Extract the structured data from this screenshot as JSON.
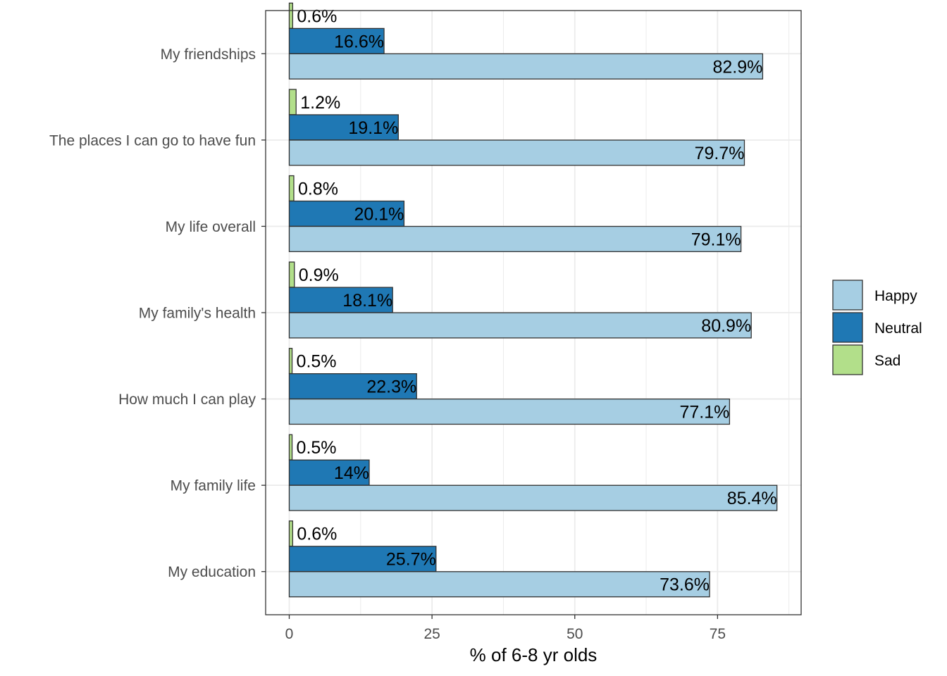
{
  "chart_data": {
    "type": "bar",
    "orientation": "horizontal",
    "categories": [
      "My friendships",
      "The places I can go to have fun",
      "My life overall",
      "My family's health",
      "How much I can play",
      "My family life",
      "My education"
    ],
    "series": [
      {
        "name": "Sad",
        "color": "#b2df8a",
        "values": [
          0.6,
          1.2,
          0.8,
          0.9,
          0.5,
          0.5,
          0.6
        ],
        "labels": [
          "0.6%",
          "1.2%",
          "0.8%",
          "0.9%",
          "0.5%",
          "0.5%",
          "0.6%"
        ]
      },
      {
        "name": "Neutral",
        "color": "#1f78b4",
        "values": [
          16.6,
          19.1,
          20.1,
          18.1,
          22.3,
          14,
          25.7
        ],
        "labels": [
          "16.6%",
          "19.1%",
          "20.1%",
          "18.1%",
          "22.3%",
          "14%",
          "25.7%"
        ]
      },
      {
        "name": "Happy",
        "color": "#a6cee3",
        "values": [
          82.9,
          79.7,
          79.1,
          80.9,
          77.1,
          85.4,
          73.6
        ],
        "labels": [
          "82.9%",
          "79.7%",
          "79.1%",
          "80.9%",
          "77.1%",
          "85.4%",
          "73.6%"
        ]
      }
    ],
    "xlabel": "% of 6-8 yr olds",
    "ylabel": "",
    "xlim": [
      0,
      90
    ],
    "xticks": [
      "0",
      "25",
      "50",
      "75"
    ],
    "xtick_values": [
      0,
      25,
      50,
      75
    ],
    "grid": true,
    "legend": {
      "position": "right",
      "entries": [
        "Happy",
        "Neutral",
        "Sad"
      ]
    }
  }
}
